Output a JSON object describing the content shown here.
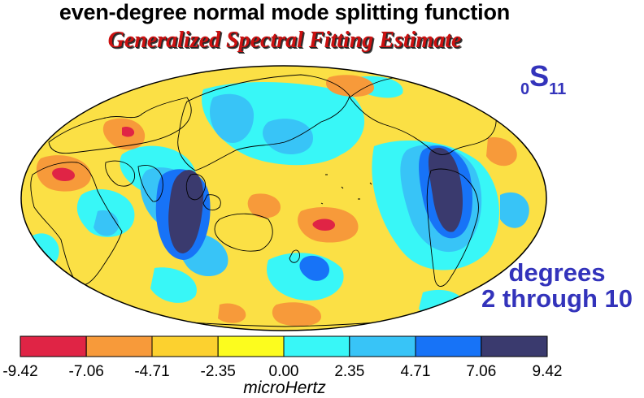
{
  "title": "even-degree normal mode splitting function",
  "subtitle": "Generalized Spectral Fitting Estimate",
  "mode": {
    "prefix": "0",
    "letter": "S",
    "suffix": "11"
  },
  "degrees_line1": "degrees",
  "degrees_line2": "2 through 10",
  "unit_label": "microHertz",
  "colors": {
    "subtitle": "#cc1111",
    "mode_label": "#3333bb",
    "ocean_base": "#fbe045",
    "coastline": "#000000"
  },
  "colorbar": {
    "ticks": [
      "-9.42",
      "-7.06",
      "-4.71",
      "-2.35",
      "0.00",
      "2.35",
      "4.71",
      "7.06",
      "9.42"
    ],
    "bins": [
      {
        "from": -9.42,
        "to": -7.06,
        "color": "#e02445"
      },
      {
        "from": -7.06,
        "to": -4.71,
        "color": "#f79a3a"
      },
      {
        "from": -4.71,
        "to": -2.35,
        "color": "#fcd12f"
      },
      {
        "from": -2.35,
        "to": 0.0,
        "color": "#fcfc1e"
      },
      {
        "from": 0.0,
        "to": 2.35,
        "color": "#38f7f7"
      },
      {
        "from": 2.35,
        "to": 4.71,
        "color": "#38c4f7"
      },
      {
        "from": 4.71,
        "to": 7.06,
        "color": "#1773f7"
      },
      {
        "from": 7.06,
        "to": 9.42,
        "color": "#3a3a6e"
      }
    ]
  }
}
